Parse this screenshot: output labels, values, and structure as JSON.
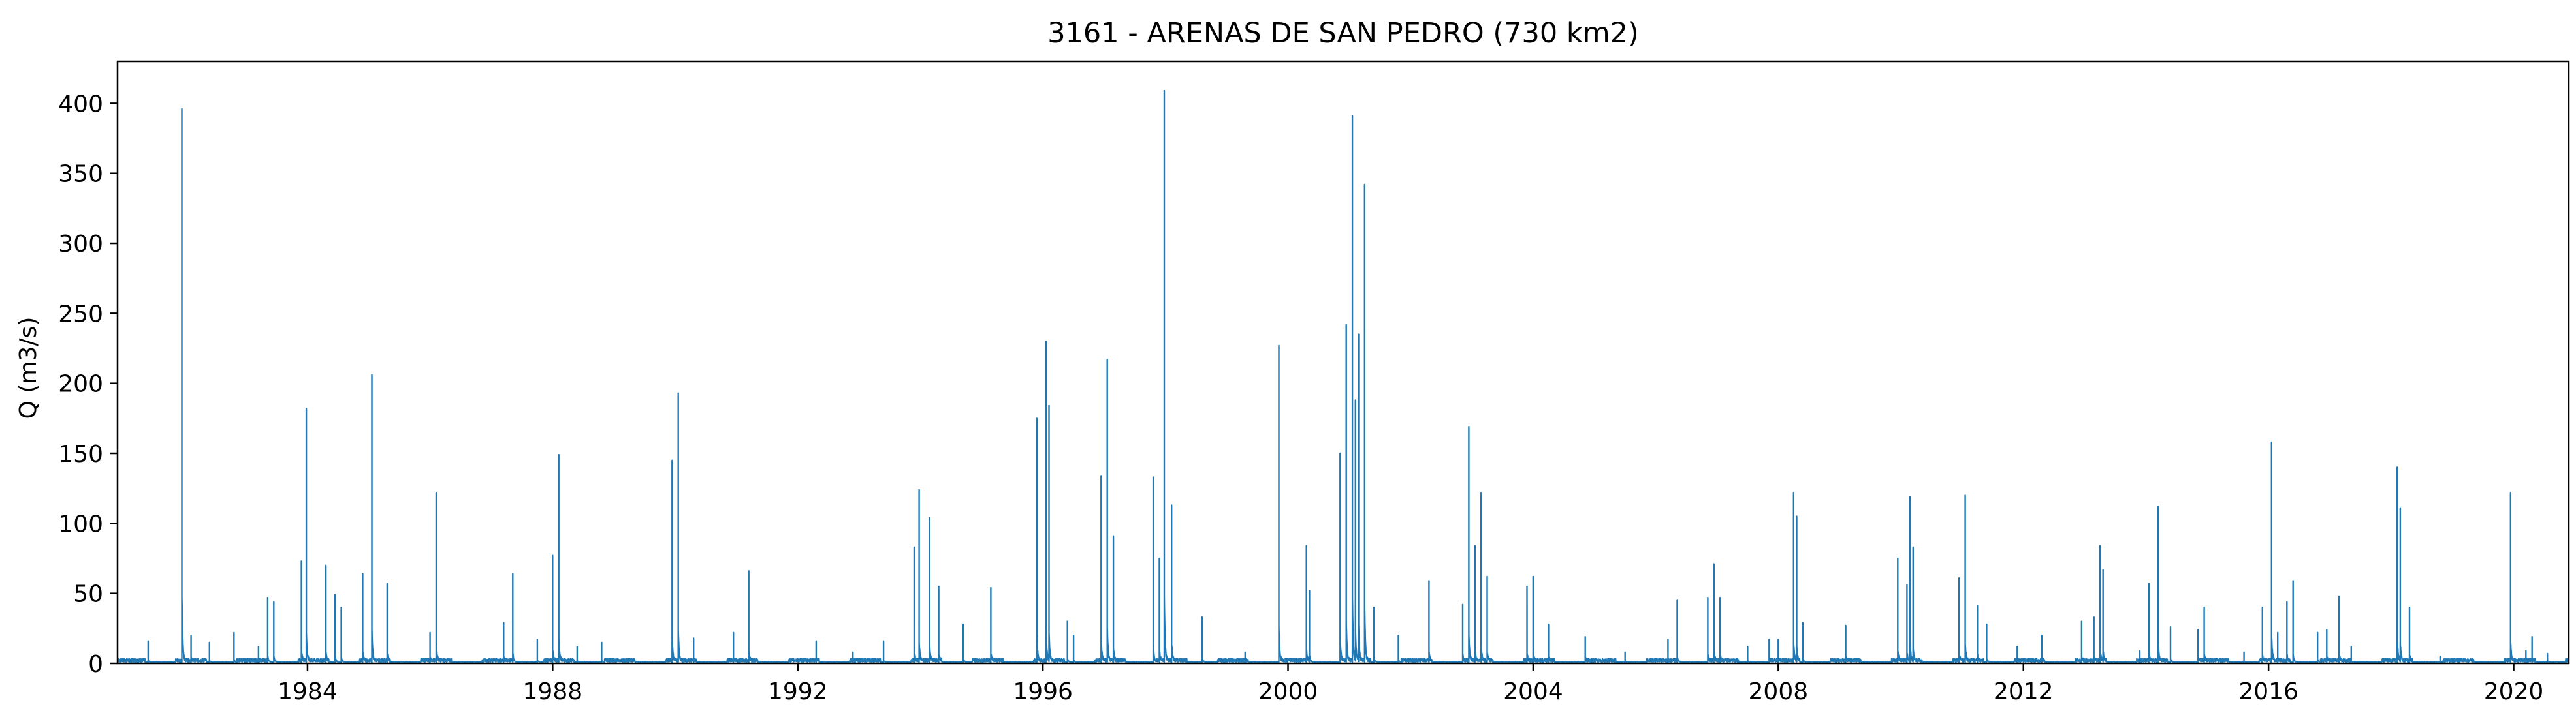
{
  "chart_data": {
    "type": "line",
    "title": "3161 - ARENAS DE SAN PEDRO (730 km2)",
    "xlabel": "",
    "ylabel": "Q (m3/s)",
    "xlim": [
      1980.9,
      2020.9
    ],
    "ylim": [
      0,
      430
    ],
    "x_ticks": [
      "1984",
      "1988",
      "1992",
      "1996",
      "2000",
      "2004",
      "2008",
      "2012",
      "2016",
      "2020"
    ],
    "y_ticks": [
      "0",
      "50",
      "100",
      "150",
      "200",
      "250",
      "300",
      "350",
      "400"
    ],
    "grid": false,
    "legend": "none",
    "series": [
      {
        "color": "#1f77b4",
        "baseflow": 1,
        "peaks": [
          [
            1981.4,
            16
          ],
          [
            1981.95,
            396
          ],
          [
            1982.1,
            20
          ],
          [
            1982.4,
            15
          ],
          [
            1982.8,
            22
          ],
          [
            1983.2,
            12
          ],
          [
            1983.35,
            47
          ],
          [
            1983.45,
            44
          ],
          [
            1983.9,
            73
          ],
          [
            1983.98,
            182
          ],
          [
            1984.3,
            70
          ],
          [
            1984.45,
            49
          ],
          [
            1984.55,
            40
          ],
          [
            1984.9,
            64
          ],
          [
            1985.05,
            206
          ],
          [
            1985.3,
            57
          ],
          [
            1986.0,
            22
          ],
          [
            1986.1,
            122
          ],
          [
            1987.2,
            29
          ],
          [
            1987.35,
            64
          ],
          [
            1987.75,
            17
          ],
          [
            1988.0,
            77
          ],
          [
            1988.1,
            149
          ],
          [
            1988.4,
            12
          ],
          [
            1988.8,
            15
          ],
          [
            1989.95,
            145
          ],
          [
            1990.05,
            193
          ],
          [
            1990.3,
            18
          ],
          [
            1990.95,
            22
          ],
          [
            1991.2,
            66
          ],
          [
            1992.3,
            16
          ],
          [
            1992.9,
            8
          ],
          [
            1993.4,
            16
          ],
          [
            1993.9,
            83
          ],
          [
            1993.98,
            124
          ],
          [
            1994.15,
            104
          ],
          [
            1994.3,
            55
          ],
          [
            1994.7,
            28
          ],
          [
            1995.15,
            54
          ],
          [
            1995.9,
            175
          ],
          [
            1996.05,
            230
          ],
          [
            1996.1,
            184
          ],
          [
            1996.4,
            30
          ],
          [
            1996.5,
            20
          ],
          [
            1996.95,
            134
          ],
          [
            1997.05,
            217
          ],
          [
            1997.15,
            91
          ],
          [
            1997.8,
            133
          ],
          [
            1997.9,
            75
          ],
          [
            1997.98,
            409
          ],
          [
            1998.1,
            113
          ],
          [
            1998.6,
            33
          ],
          [
            1999.3,
            8
          ],
          [
            1999.85,
            227
          ],
          [
            2000.3,
            84
          ],
          [
            2000.35,
            52
          ],
          [
            2000.85,
            150
          ],
          [
            2000.95,
            242
          ],
          [
            2001.05,
            391
          ],
          [
            2001.1,
            188
          ],
          [
            2001.15,
            235
          ],
          [
            2001.25,
            342
          ],
          [
            2001.4,
            40
          ],
          [
            2001.8,
            20
          ],
          [
            2002.3,
            59
          ],
          [
            2002.85,
            42
          ],
          [
            2002.95,
            169
          ],
          [
            2003.05,
            84
          ],
          [
            2003.15,
            122
          ],
          [
            2003.25,
            62
          ],
          [
            2003.9,
            55
          ],
          [
            2004.0,
            62
          ],
          [
            2004.25,
            28
          ],
          [
            2004.85,
            19
          ],
          [
            2005.5,
            8
          ],
          [
            2006.2,
            17
          ],
          [
            2006.35,
            45
          ],
          [
            2006.85,
            47
          ],
          [
            2006.95,
            71
          ],
          [
            2007.05,
            47
          ],
          [
            2007.5,
            12
          ],
          [
            2007.85,
            17
          ],
          [
            2008.0,
            17
          ],
          [
            2008.25,
            122
          ],
          [
            2008.3,
            105
          ],
          [
            2008.4,
            29
          ],
          [
            2009.1,
            27
          ],
          [
            2009.95,
            75
          ],
          [
            2010.1,
            56
          ],
          [
            2010.15,
            119
          ],
          [
            2010.2,
            83
          ],
          [
            2010.95,
            61
          ],
          [
            2011.05,
            120
          ],
          [
            2011.25,
            41
          ],
          [
            2011.4,
            28
          ],
          [
            2011.9,
            12
          ],
          [
            2012.3,
            20
          ],
          [
            2012.95,
            30
          ],
          [
            2013.15,
            33
          ],
          [
            2013.25,
            84
          ],
          [
            2013.3,
            67
          ],
          [
            2013.9,
            9
          ],
          [
            2014.05,
            57
          ],
          [
            2014.2,
            112
          ],
          [
            2014.4,
            26
          ],
          [
            2014.85,
            24
          ],
          [
            2014.95,
            40
          ],
          [
            2015.6,
            8
          ],
          [
            2015.9,
            40
          ],
          [
            2016.05,
            158
          ],
          [
            2016.15,
            22
          ],
          [
            2016.3,
            44
          ],
          [
            2016.4,
            59
          ],
          [
            2016.8,
            22
          ],
          [
            2016.95,
            24
          ],
          [
            2017.15,
            48
          ],
          [
            2017.35,
            12
          ],
          [
            2018.1,
            140
          ],
          [
            2018.15,
            111
          ],
          [
            2018.3,
            40
          ],
          [
            2018.8,
            5
          ],
          [
            2019.1,
            3
          ],
          [
            2019.95,
            122
          ],
          [
            2020.2,
            9
          ],
          [
            2020.3,
            19
          ],
          [
            2020.55,
            7
          ]
        ]
      }
    ]
  }
}
